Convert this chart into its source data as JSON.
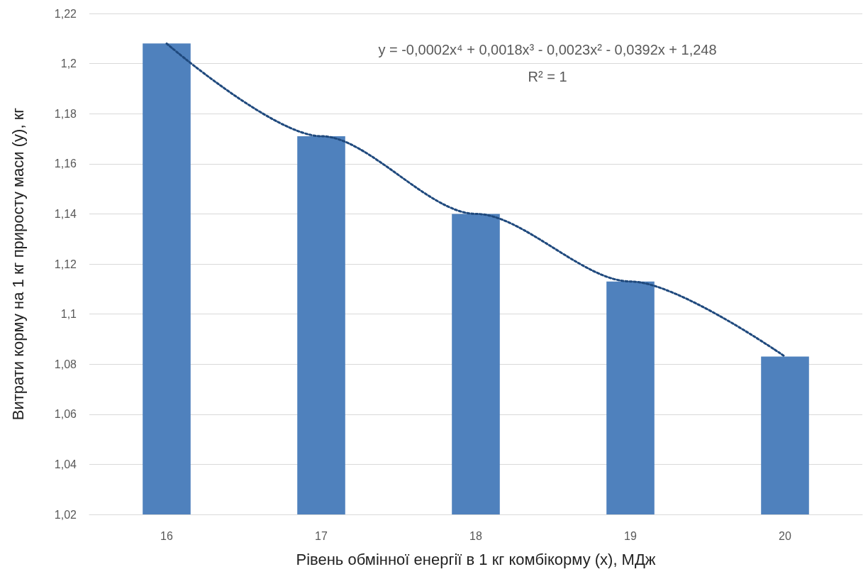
{
  "chart_data": {
    "type": "bar",
    "xlabel": "Рівень обмінної енергії в 1 кг комбікорму (x), МДж",
    "ylabel": "Витрати корму на 1 кг приросту маси (y), кг",
    "categories": [
      "16",
      "17",
      "18",
      "19",
      "20"
    ],
    "series": [
      {
        "color": "#4f81bd",
        "values": [
          1.208,
          1.171,
          1.14,
          1.113,
          1.083
        ]
      },
      {
        "type": "line",
        "color": "#1f497d",
        "x": [
          "16",
          "17",
          "18",
          "19",
          "20"
        ],
        "values": [
          1.208,
          1.171,
          1.14,
          1.113,
          1.083
        ],
        "line_style": "dotted"
      }
    ],
    "ylim": [
      1.02,
      1.22
    ],
    "yticks": [
      {
        "value": 1.02,
        "label": "1,02"
      },
      {
        "value": 1.04,
        "label": "1,04"
      },
      {
        "value": 1.06,
        "label": "1,06"
      },
      {
        "value": 1.08,
        "label": "1,08"
      },
      {
        "value": 1.1,
        "label": "1,1"
      },
      {
        "value": 1.12,
        "label": "1,12"
      },
      {
        "value": 1.14,
        "label": "1,14"
      },
      {
        "value": 1.16,
        "label": "1,16"
      },
      {
        "value": 1.18,
        "label": "1,18"
      },
      {
        "value": 1.2,
        "label": "1,2"
      },
      {
        "value": 1.22,
        "label": "1,22"
      }
    ],
    "grid": "y",
    "annotations": [
      "y = -0,0002x⁴ + 0,0018x³ - 0,0023x² - 0,0392x + 1,248",
      "R² = 1"
    ]
  }
}
